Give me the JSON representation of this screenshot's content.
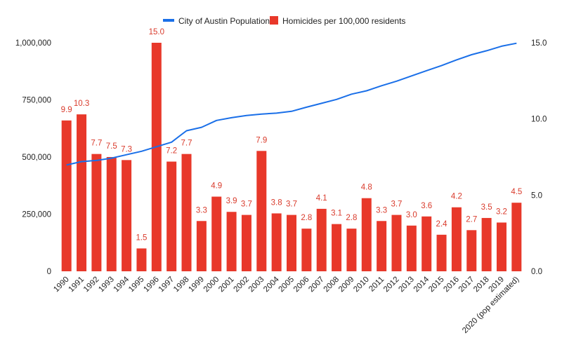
{
  "chart_data": {
    "type": "bar",
    "categories": [
      "1990",
      "1991",
      "1992",
      "1993",
      "1994",
      "1995",
      "1996",
      "1997",
      "1998",
      "1999",
      "2000",
      "2001",
      "2002",
      "2003",
      "2004",
      "2005",
      "2006",
      "2007",
      "2008",
      "2009",
      "2010",
      "2011",
      "2012",
      "2013",
      "2014",
      "2015",
      "2016",
      "2017",
      "2018",
      "2019",
      "2020 (pop estimated)"
    ],
    "series": [
      {
        "name": "City of Austin Population",
        "type": "line",
        "axis": "left",
        "color": "#1a6fe8",
        "values": [
          465000,
          480000,
          485000,
          495000,
          510000,
          525000,
          545000,
          565000,
          615000,
          630000,
          660000,
          672000,
          682000,
          688000,
          692000,
          700000,
          718000,
          735000,
          752000,
          775000,
          790000,
          812000,
          832000,
          855000,
          878000,
          900000,
          925000,
          948000,
          965000,
          985000,
          998000
        ]
      },
      {
        "name": "Homicides per 100,000 residents",
        "type": "bar",
        "axis": "right",
        "color": "#e8382a",
        "values": [
          9.9,
          10.3,
          7.7,
          7.5,
          7.3,
          1.5,
          15.0,
          7.2,
          7.7,
          3.3,
          4.9,
          3.9,
          3.7,
          7.9,
          3.8,
          3.7,
          2.8,
          4.1,
          3.1,
          2.8,
          4.8,
          3.3,
          3.7,
          3.0,
          3.6,
          2.4,
          4.2,
          2.7,
          3.5,
          3.2,
          4.5
        ],
        "labels": [
          "9.9",
          "10.3",
          "7.7",
          "7.5",
          "7.3",
          "1.5",
          "15.0",
          "7.2",
          "7.7",
          "3.3",
          "4.9",
          "3.9",
          "3.7",
          "7.9",
          "3.8",
          "3.7",
          "2.8",
          "4.1",
          "3.1",
          "2.8",
          "4.8",
          "3.3",
          "3.7",
          "3.0",
          "3.6",
          "2.4",
          "4.2",
          "2.7",
          "3.5",
          "3.2",
          "4.5"
        ]
      }
    ],
    "y_left": {
      "ylim": [
        0,
        1000000
      ],
      "ticks": [
        0,
        250000,
        500000,
        750000,
        1000000
      ],
      "tick_labels": [
        "0",
        "250,000",
        "500,000",
        "750,000",
        "1,000,000"
      ]
    },
    "y_right": {
      "ylim": [
        0,
        15
      ],
      "ticks": [
        0,
        5,
        10,
        15
      ],
      "tick_labels": [
        "0.0",
        "5.0",
        "10.0",
        "15.0"
      ]
    },
    "grid": false,
    "legend_position": "top-center",
    "xtick_rotation": -45
  }
}
